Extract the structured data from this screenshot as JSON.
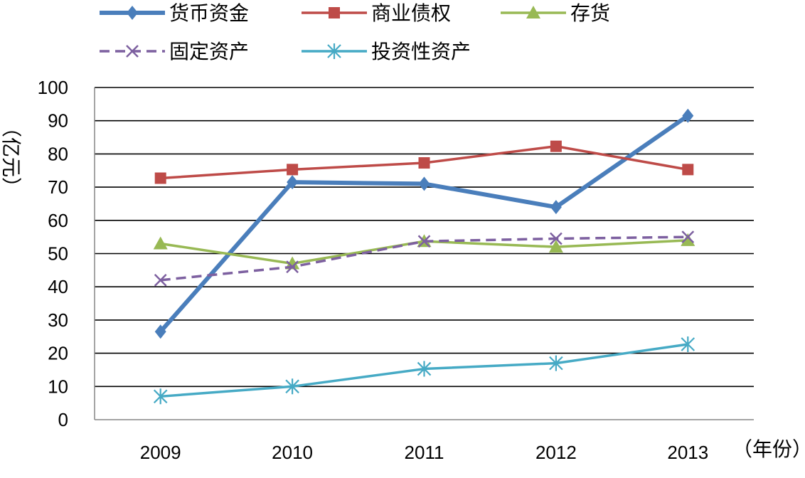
{
  "chart_data": {
    "type": "line",
    "categories": [
      "2009",
      "2010",
      "2011",
      "2012",
      "2013"
    ],
    "ylabel": "（亿元）",
    "xlabel": "（年份）",
    "ylim": [
      0,
      100
    ],
    "yticks": [
      0,
      10,
      20,
      30,
      40,
      50,
      60,
      70,
      80,
      90,
      100
    ],
    "grid": true,
    "legend_position": "top",
    "series": [
      {
        "name": "货币资金",
        "color": "#4a7ebb",
        "marker": "diamond",
        "dash": "solid",
        "values": [
          26.5,
          71.5,
          71,
          64,
          91.5
        ]
      },
      {
        "name": "商业债权",
        "color": "#be4b48",
        "marker": "square",
        "dash": "solid",
        "values": [
          72.7,
          75.3,
          77.3,
          82.3,
          75.3
        ]
      },
      {
        "name": "存货",
        "color": "#98b954",
        "marker": "triangle",
        "dash": "solid",
        "values": [
          53,
          47,
          53.7,
          52,
          54
        ]
      },
      {
        "name": "固定资产",
        "color": "#7d60a0",
        "marker": "x",
        "dash": "dashed",
        "values": [
          42,
          46,
          53.7,
          54.5,
          55
        ]
      },
      {
        "name": "投资性资产",
        "color": "#46aac5",
        "marker": "star",
        "dash": "solid",
        "values": [
          7,
          10,
          15.3,
          17,
          22.7
        ]
      }
    ]
  }
}
